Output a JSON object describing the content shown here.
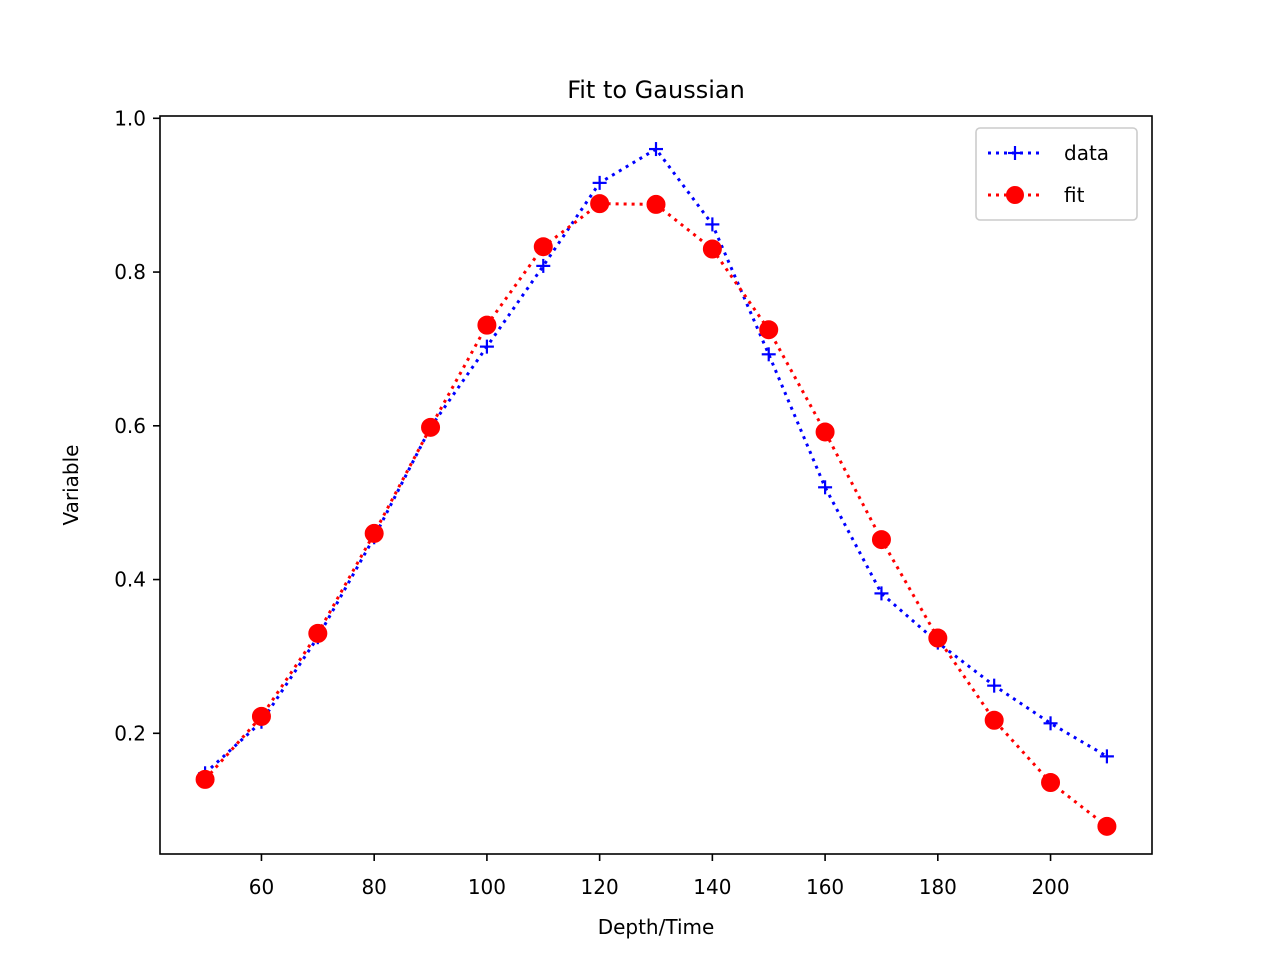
{
  "chart_data": {
    "type": "line",
    "title": "Fit to Gaussian",
    "xlabel": "Depth/Time",
    "ylabel": "Variable",
    "xlim": [
      42,
      218
    ],
    "ylim": [
      0.043,
      1.003
    ],
    "x_ticks": [
      60,
      80,
      100,
      120,
      140,
      160,
      180,
      200
    ],
    "x_tick_labels": [
      "60",
      "80",
      "100",
      "120",
      "140",
      "160",
      "180",
      "200"
    ],
    "y_ticks": [
      0.2,
      0.4,
      0.6,
      0.8,
      1.0
    ],
    "y_tick_labels": [
      "0.2",
      "0.4",
      "0.6",
      "0.8",
      "1.0"
    ],
    "grid": false,
    "legend_position": "top-right",
    "x": [
      50,
      60,
      70,
      80,
      90,
      100,
      110,
      120,
      130,
      140,
      150,
      160,
      170,
      180,
      190,
      200,
      210
    ],
    "series": [
      {
        "name": "data",
        "color": "#0000ff",
        "marker": "plus",
        "line_style": "dotted",
        "values": [
          0.148,
          0.215,
          0.325,
          0.455,
          0.598,
          0.703,
          0.808,
          0.916,
          0.96,
          0.862,
          0.693,
          0.52,
          0.382,
          0.318,
          0.262,
          0.213,
          0.17
        ]
      },
      {
        "name": "fit",
        "color": "#ff0000",
        "marker": "circle",
        "line_style": "dotted",
        "values": [
          0.14,
          0.222,
          0.33,
          0.46,
          0.598,
          0.731,
          0.833,
          0.889,
          0.888,
          0.83,
          0.725,
          0.592,
          0.452,
          0.324,
          0.217,
          0.136,
          0.079
        ]
      }
    ]
  }
}
